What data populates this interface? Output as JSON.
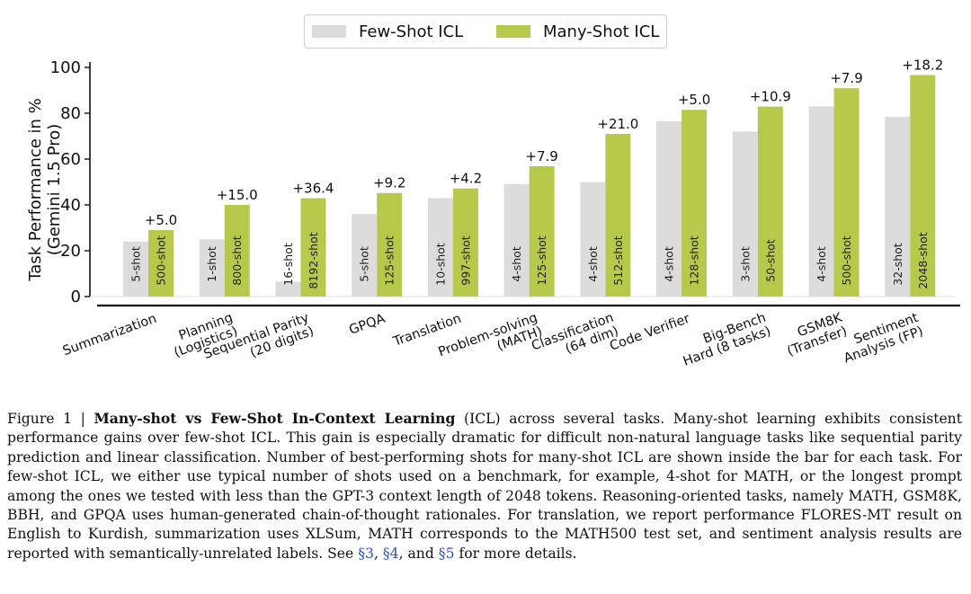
{
  "chart_data": {
    "type": "bar",
    "ylabel": "Task Performance in % (Gemini 1.5 Pro)",
    "ylabel_lines": [
      "Task Performance in %",
      "(Gemini 1.5 Pro)"
    ],
    "ylim": [
      0,
      100
    ],
    "yticks": [
      0,
      20,
      40,
      60,
      80,
      100
    ],
    "legend_position": "top-center",
    "series": [
      {
        "name": "Few-Shot ICL",
        "color": "#dcdcdc",
        "values": [
          24,
          25,
          6.5,
          36,
          43,
          49,
          50,
          76.5,
          72,
          83,
          78.5
        ],
        "shots": [
          "5-shot",
          "1-shot",
          "16-shot",
          "5-shot",
          "10-shot",
          "4-shot",
          "4-shot",
          "4-shot",
          "3-shot",
          "4-shot",
          "32-shot"
        ]
      },
      {
        "name": "Many-Shot ICL",
        "color": "#b7c94a",
        "values": [
          29,
          40,
          42.9,
          45.2,
          47.2,
          56.9,
          71,
          81.5,
          82.9,
          90.9,
          96.7
        ],
        "shots": [
          "500-shot",
          "800-shot",
          "8192-shot",
          "125-shot",
          "997-shot",
          "125-shot",
          "512-shot",
          "128-shot",
          "50-shot",
          "500-shot",
          "2048-shot"
        ]
      }
    ],
    "categories": [
      [
        "Summarization"
      ],
      [
        "Planning",
        "(Logistics)"
      ],
      [
        "Sequential Parity",
        "(20 digits)"
      ],
      [
        "GPQA"
      ],
      [
        "Translation"
      ],
      [
        "Problem-solving",
        "(MATH)"
      ],
      [
        "Classification",
        "(64 dim)"
      ],
      [
        "Code Verifier"
      ],
      [
        "Big-Bench",
        "Hard (8 tasks)"
      ],
      [
        "GSM8K",
        "(Transfer)"
      ],
      [
        "Sentiment",
        "Analysis (FP)"
      ]
    ],
    "deltas": [
      "+5.0",
      "+15.0",
      "+36.4",
      "+9.2",
      "+4.2",
      "+7.9",
      "+21.0",
      "+5.0",
      "+10.9",
      "+7.9",
      "+18.2"
    ]
  },
  "caption": {
    "figure_label": "Figure 1 | ",
    "title": "Many-shot vs Few-Shot In-Context Learning",
    "body_part1": " (ICL) across several tasks. Many-shot learning exhibits consistent performance gains over few-shot ICL. This gain is especially dramatic for difficult non-natural language tasks like sequential parity prediction and linear classification. Number of best-performing shots for many-shot ICL are shown inside the bar for each task. For few-shot ICL, we either use typical number of shots used on a benchmark, for example, 4-shot for MATH, or the longest prompt among the ones we tested with less than the GPT-3 context length of 2048 tokens. Reasoning-oriented tasks, namely MATH, GSM8K, BBH, and GPQA uses human-generated chain-of-thought rationales. For translation, we report performance FLORES-MT result on English to Kurdish, summarization uses XLSum, MATH corresponds to the MATH500 test set, and sentiment analysis results are reported with semantically-unrelated labels. See ",
    "ref1": "§3",
    "sep1": ", ",
    "ref2": "§4",
    "sep2": ", and ",
    "ref3": "§5",
    "body_end": " for more details."
  }
}
